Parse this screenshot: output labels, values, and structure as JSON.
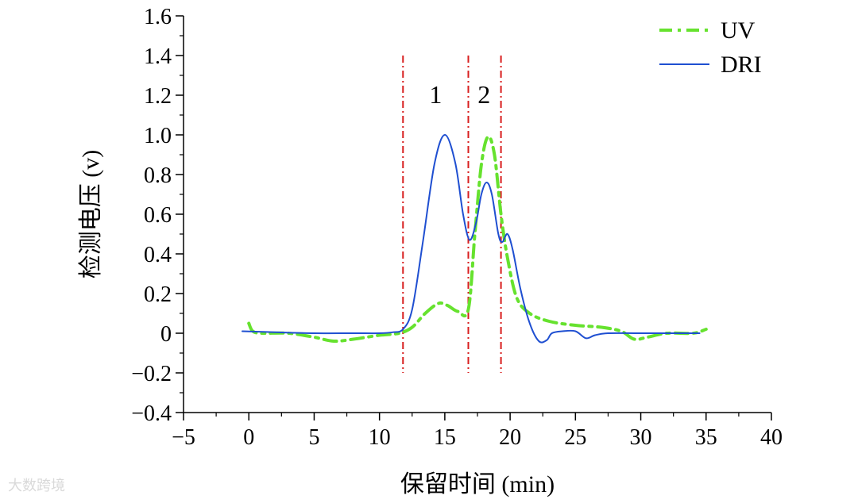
{
  "chart_data": {
    "type": "line",
    "xlabel": "保留时间 (min)",
    "ylabel": "检测电压 (v)",
    "xlim": [
      -5,
      40
    ],
    "ylim": [
      -0.4,
      1.6
    ],
    "x_ticks": [
      -5,
      0,
      5,
      10,
      15,
      20,
      25,
      30,
      35,
      40
    ],
    "x_tick_labels": [
      "−5",
      "0",
      "5",
      "10",
      "15",
      "20",
      "25",
      "30",
      "35",
      "40"
    ],
    "y_ticks": [
      -0.4,
      -0.2,
      0,
      0.2,
      0.4,
      0.6,
      0.8,
      1.0,
      1.2,
      1.4,
      1.6
    ],
    "y_tick_labels": [
      "−0.4",
      "−0.2",
      "0",
      "0.2",
      "0.4",
      "0.6",
      "0.8",
      "1.0",
      "1.2",
      "1.4",
      "1.6"
    ],
    "legend_position": "top-right",
    "series": [
      {
        "name": "UV",
        "color": "#66e22e",
        "style": "dashdot",
        "points": [
          [
            0,
            0.05
          ],
          [
            0.3,
            0.01
          ],
          [
            1,
            0.0
          ],
          [
            3,
            0.0
          ],
          [
            5,
            -0.02
          ],
          [
            6.5,
            -0.04
          ],
          [
            8,
            -0.03
          ],
          [
            10,
            -0.01
          ],
          [
            11.5,
            0.0
          ],
          [
            12.5,
            0.03
          ],
          [
            13.5,
            0.1
          ],
          [
            14.5,
            0.15
          ],
          [
            15.2,
            0.14
          ],
          [
            16,
            0.11
          ],
          [
            16.8,
            0.12
          ],
          [
            17.3,
            0.5
          ],
          [
            17.8,
            0.85
          ],
          [
            18.3,
            0.99
          ],
          [
            18.8,
            0.9
          ],
          [
            19.3,
            0.6
          ],
          [
            19.8,
            0.38
          ],
          [
            20.5,
            0.18
          ],
          [
            21.5,
            0.1
          ],
          [
            23,
            0.06
          ],
          [
            25,
            0.04
          ],
          [
            27,
            0.03
          ],
          [
            28.5,
            0.01
          ],
          [
            29.5,
            -0.03
          ],
          [
            30.5,
            -0.02
          ],
          [
            32,
            0.0
          ],
          [
            34,
            0.0
          ],
          [
            35,
            0.02
          ]
        ]
      },
      {
        "name": "DRI",
        "color": "#1f4fd1",
        "style": "solid",
        "points": [
          [
            -0.5,
            0.01
          ],
          [
            2,
            0.005
          ],
          [
            5,
            0.0
          ],
          [
            8,
            0.0
          ],
          [
            10,
            0.0
          ],
          [
            11,
            0.005
          ],
          [
            11.8,
            0.02
          ],
          [
            12.5,
            0.12
          ],
          [
            13.3,
            0.45
          ],
          [
            14.2,
            0.85
          ],
          [
            15,
            1.0
          ],
          [
            15.8,
            0.86
          ],
          [
            16.4,
            0.6
          ],
          [
            16.9,
            0.47
          ],
          [
            17.4,
            0.56
          ],
          [
            17.8,
            0.7
          ],
          [
            18.2,
            0.76
          ],
          [
            18.6,
            0.7
          ],
          [
            19.1,
            0.5
          ],
          [
            19.4,
            0.46
          ],
          [
            19.8,
            0.5
          ],
          [
            20.2,
            0.42
          ],
          [
            20.8,
            0.22
          ],
          [
            21.5,
            0.05
          ],
          [
            22.2,
            -0.04
          ],
          [
            22.8,
            -0.035
          ],
          [
            23.2,
            0.0
          ],
          [
            24,
            0.01
          ],
          [
            25,
            0.01
          ],
          [
            25.8,
            -0.025
          ],
          [
            26.5,
            -0.01
          ],
          [
            27.5,
            0.0
          ],
          [
            30,
            0.0
          ],
          [
            34.5,
            0.0
          ]
        ]
      }
    ],
    "vertical_lines": [
      {
        "x": 11.8,
        "color": "#d81e1e"
      },
      {
        "x": 16.8,
        "color": "#d81e1e"
      },
      {
        "x": 19.3,
        "color": "#d81e1e"
      }
    ],
    "vertical_lines_y_range": [
      -0.2,
      1.4
    ],
    "region_labels": [
      {
        "text": "1",
        "x": 14.3,
        "y": 1.2
      },
      {
        "text": "2",
        "x": 18.0,
        "y": 1.2
      }
    ]
  },
  "watermark": "大数跨境"
}
